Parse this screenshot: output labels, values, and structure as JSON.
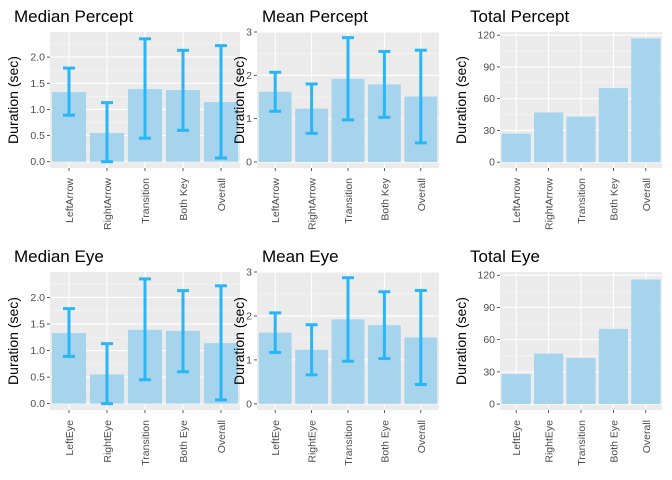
{
  "style": {
    "panel_bg": "#ebebeb",
    "grid_major": "#ffffff",
    "bar_fill": "#a6d4ec",
    "errorbar": "#29b6f6"
  },
  "chart_data": [
    {
      "type": "bar",
      "title": "Median Percept",
      "ylabel": "Duration (sec)",
      "categories": [
        "LeftArrow",
        "RightArrow",
        "Transition",
        "Both Key",
        "Overall"
      ],
      "values": [
        1.33,
        0.55,
        1.39,
        1.37,
        1.14
      ],
      "error_low": [
        0.89,
        0.0,
        0.45,
        0.6,
        0.07
      ],
      "error_high": [
        1.79,
        1.13,
        2.35,
        2.13,
        2.22
      ],
      "yticks": [
        0.0,
        0.5,
        1.0,
        1.5,
        2.0
      ],
      "ytick_labels": [
        "0.0",
        "0.5",
        "1.0",
        "1.5",
        "2.0"
      ],
      "ylim": [
        -0.12,
        2.48
      ]
    },
    {
      "type": "bar",
      "title": "Mean Percept",
      "ylabel": "Duration (sec)",
      "categories": [
        "LeftArrow",
        "RightArrow",
        "Transition",
        "Both Key",
        "Overall"
      ],
      "values": [
        1.62,
        1.23,
        1.92,
        1.79,
        1.51
      ],
      "error_low": [
        1.17,
        0.66,
        0.97,
        1.03,
        0.44
      ],
      "error_high": [
        2.07,
        1.8,
        2.87,
        2.55,
        2.58
      ],
      "yticks": [
        0,
        1,
        2,
        3
      ],
      "ytick_labels": [
        "0",
        "1",
        "2",
        "3"
      ],
      "ylim": [
        -0.14,
        3.0
      ]
    },
    {
      "type": "bar",
      "title": "Total Percept",
      "ylabel": "Duration (sec)",
      "categories": [
        "LeftArrow",
        "RightArrow",
        "Transition",
        "Both Key",
        "Overall"
      ],
      "values": [
        27,
        47,
        43,
        70,
        117
      ],
      "yticks": [
        0,
        30,
        60,
        90,
        120
      ],
      "ytick_labels": [
        "0",
        "30",
        "60",
        "90",
        "120"
      ],
      "ylim": [
        -5.5,
        123
      ]
    },
    {
      "type": "bar",
      "title": "Median Eye",
      "ylabel": "Duration (sec)",
      "categories": [
        "LeftEye",
        "RightEye",
        "Transition",
        "Both Eye",
        "Overall"
      ],
      "values": [
        1.33,
        0.55,
        1.39,
        1.37,
        1.14
      ],
      "error_low": [
        0.89,
        0.0,
        0.45,
        0.6,
        0.07
      ],
      "error_high": [
        1.79,
        1.13,
        2.35,
        2.13,
        2.22
      ],
      "yticks": [
        0.0,
        0.5,
        1.0,
        1.5,
        2.0
      ],
      "ytick_labels": [
        "0.0",
        "0.5",
        "1.0",
        "1.5",
        "2.0"
      ],
      "ylim": [
        -0.12,
        2.48
      ]
    },
    {
      "type": "bar",
      "title": "Mean Eye",
      "ylabel": "Duration (sec)",
      "categories": [
        "LeftEye",
        "RightEye",
        "Transition",
        "Both Eye",
        "Overall"
      ],
      "values": [
        1.62,
        1.23,
        1.92,
        1.79,
        1.51
      ],
      "error_low": [
        1.17,
        0.66,
        0.97,
        1.03,
        0.44
      ],
      "error_high": [
        2.07,
        1.8,
        2.87,
        2.55,
        2.58
      ],
      "yticks": [
        0,
        1,
        2,
        3
      ],
      "ytick_labels": [
        "0",
        "1",
        "2",
        "3"
      ],
      "ylim": [
        -0.14,
        3.0
      ]
    },
    {
      "type": "bar",
      "title": "Total Eye",
      "ylabel": "Duration (sec)",
      "categories": [
        "LeftEye",
        "RightEye",
        "Transition",
        "Both Eye",
        "Overall"
      ],
      "values": [
        28,
        47,
        43,
        70,
        116
      ],
      "yticks": [
        0,
        30,
        60,
        90,
        120
      ],
      "ytick_labels": [
        "0",
        "30",
        "60",
        "90",
        "120"
      ],
      "ylim": [
        -5.5,
        123
      ]
    }
  ]
}
